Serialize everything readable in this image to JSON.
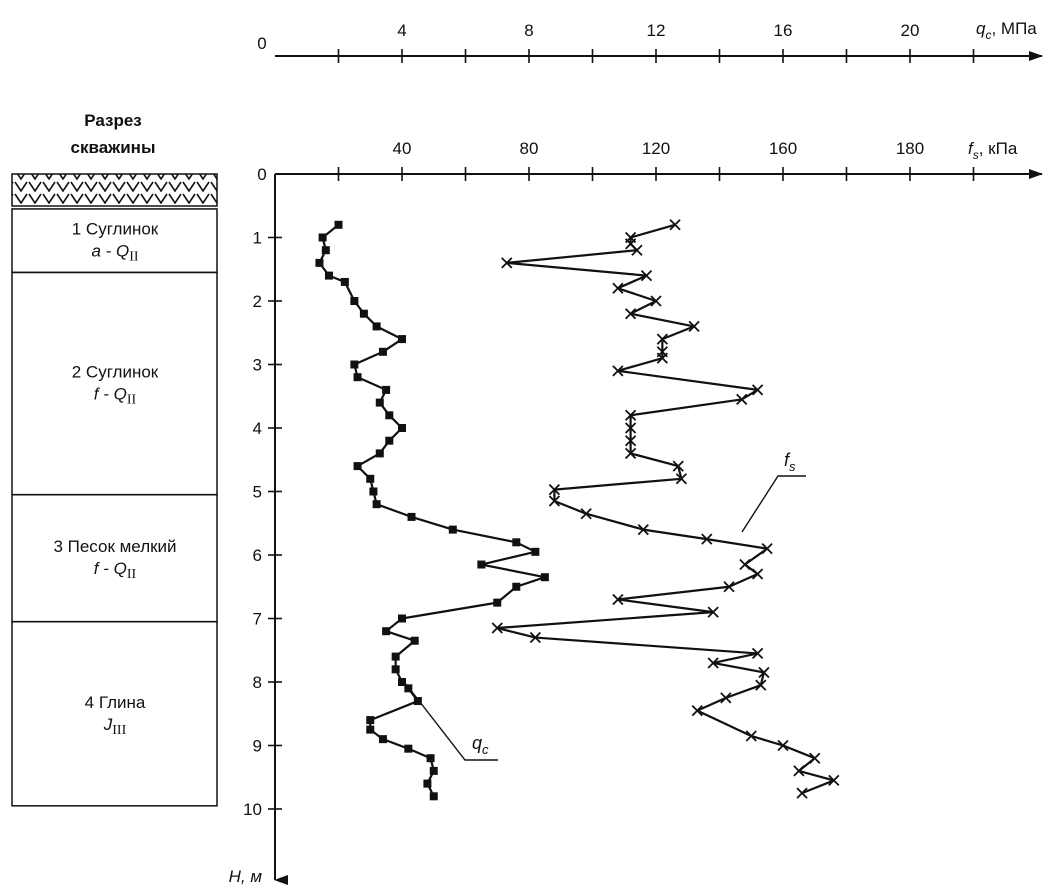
{
  "chart_data": {
    "type": "line",
    "depth_axis": {
      "label": "H, м",
      "ticks": [
        "1",
        "2",
        "3",
        "4",
        "5",
        "6",
        "7",
        "8",
        "9",
        "10"
      ],
      "range": [
        0,
        10.5
      ],
      "direction": "downward"
    },
    "qc_axis": {
      "symbol": "q",
      "subscript": "c",
      "unit": ", МПа",
      "zero_label": "0",
      "ticks": [
        "4",
        "8",
        "12",
        "16",
        "20"
      ],
      "range": [
        0,
        24
      ]
    },
    "fs_axis": {
      "symbol": "f",
      "subscript": "s",
      "unit": ", кПа",
      "zero_label": "0",
      "ticks": [
        "40",
        "80",
        "120",
        "160",
        "180"
      ],
      "range": [
        0,
        240
      ]
    },
    "borehole": {
      "title_line1": "Разрез",
      "title_line2": "скважины",
      "layers": [
        {
          "name": "1 Суглинок",
          "index": "a - Q",
          "index_sub": "II",
          "top": 0.55,
          "bottom": 1.55
        },
        {
          "name": "2 Суглинок",
          "index": "f - Q",
          "index_sub": "II",
          "top": 1.55,
          "bottom": 5.05
        },
        {
          "name": "3 Песок мелкий",
          "index": "f - Q",
          "index_sub": "II",
          "top": 5.05,
          "bottom": 7.05
        },
        {
          "name": "4 Глина",
          "index": "J",
          "index_sub": "III",
          "top": 7.05,
          "bottom": 9.95
        }
      ]
    },
    "series": [
      {
        "name": "q",
        "name_sub": "c",
        "marker": "square",
        "points": [
          [
            2.0,
            0.8
          ],
          [
            1.5,
            1.0
          ],
          [
            1.6,
            1.2
          ],
          [
            1.4,
            1.4
          ],
          [
            1.7,
            1.6
          ],
          [
            2.2,
            1.7
          ],
          [
            2.5,
            2.0
          ],
          [
            2.8,
            2.2
          ],
          [
            3.2,
            2.4
          ],
          [
            4.0,
            2.6
          ],
          [
            3.4,
            2.8
          ],
          [
            2.5,
            3.0
          ],
          [
            2.6,
            3.2
          ],
          [
            3.5,
            3.4
          ],
          [
            3.3,
            3.6
          ],
          [
            3.6,
            3.8
          ],
          [
            4.0,
            4.0
          ],
          [
            3.6,
            4.2
          ],
          [
            3.3,
            4.4
          ],
          [
            2.6,
            4.6
          ],
          [
            3.0,
            4.8
          ],
          [
            3.1,
            5.0
          ],
          [
            3.2,
            5.2
          ],
          [
            4.3,
            5.4
          ],
          [
            5.6,
            5.6
          ],
          [
            7.6,
            5.8
          ],
          [
            8.2,
            5.95
          ],
          [
            6.5,
            6.15
          ],
          [
            8.5,
            6.35
          ],
          [
            7.6,
            6.5
          ],
          [
            7.0,
            6.75
          ],
          [
            4.0,
            7.0
          ],
          [
            3.5,
            7.2
          ],
          [
            4.4,
            7.35
          ],
          [
            3.8,
            7.6
          ],
          [
            3.8,
            7.8
          ],
          [
            4.0,
            8.0
          ],
          [
            4.2,
            8.1
          ],
          [
            4.5,
            8.3
          ],
          [
            3.0,
            8.6
          ],
          [
            3.0,
            8.75
          ],
          [
            3.4,
            8.9
          ],
          [
            4.2,
            9.05
          ],
          [
            4.9,
            9.2
          ],
          [
            5.0,
            9.4
          ],
          [
            4.8,
            9.6
          ],
          [
            5.0,
            9.8
          ]
        ]
      },
      {
        "name": "f",
        "name_sub": "s",
        "marker": "cross",
        "points": [
          [
            126,
            0.8
          ],
          [
            112,
            1.0
          ],
          [
            112,
            1.1
          ],
          [
            114,
            1.2
          ],
          [
            73,
            1.4
          ],
          [
            117,
            1.6
          ],
          [
            108,
            1.8
          ],
          [
            120,
            2.0
          ],
          [
            112,
            2.2
          ],
          [
            132,
            2.4
          ],
          [
            122,
            2.6
          ],
          [
            122,
            2.8
          ],
          [
            122,
            2.9
          ],
          [
            108,
            3.1
          ],
          [
            152,
            3.4
          ],
          [
            147,
            3.55
          ],
          [
            112,
            3.8
          ],
          [
            112,
            4.0
          ],
          [
            112,
            4.2
          ],
          [
            112,
            4.4
          ],
          [
            127,
            4.6
          ],
          [
            128,
            4.8
          ],
          [
            88,
            4.97
          ],
          [
            88,
            5.15
          ],
          [
            98,
            5.35
          ],
          [
            116,
            5.6
          ],
          [
            136,
            5.75
          ],
          [
            155,
            5.9
          ],
          [
            148,
            6.15
          ],
          [
            152,
            6.3
          ],
          [
            143,
            6.5
          ],
          [
            108,
            6.7
          ],
          [
            138,
            6.9
          ],
          [
            70,
            7.15
          ],
          [
            82,
            7.3
          ],
          [
            152,
            7.55
          ],
          [
            138,
            7.7
          ],
          [
            154,
            7.85
          ],
          [
            153,
            8.05
          ],
          [
            142,
            8.25
          ],
          [
            133,
            8.45
          ],
          [
            150,
            8.85
          ],
          [
            160,
            9.0
          ],
          [
            170,
            9.2
          ],
          [
            165,
            9.4
          ],
          [
            176,
            9.55
          ],
          [
            166,
            9.75
          ]
        ]
      }
    ]
  }
}
